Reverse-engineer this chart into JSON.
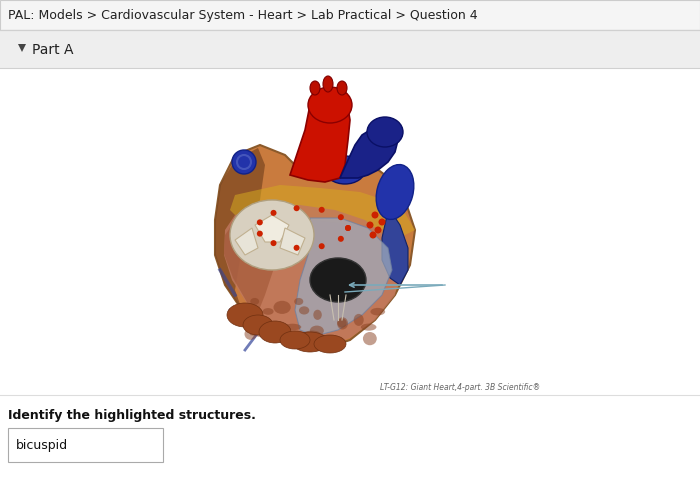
{
  "title_text": "PAL: Models > Cardiovascular System - Heart > Lab Practical > Question 4",
  "part_label": "Part A",
  "caption_text": "LT-G12: Giant Heart,4-part. 3B Scientific®",
  "instruction_text": "Identify the highlighted structures.",
  "answer_text": "bicuspid",
  "bg_color": "#ffffff",
  "header_bg": "#f5f5f5",
  "part_bg": "#eeeeee",
  "title_color": "#222222",
  "part_color": "#222222",
  "border_color": "#cccccc",
  "arrow_color": "#7aa8bb"
}
